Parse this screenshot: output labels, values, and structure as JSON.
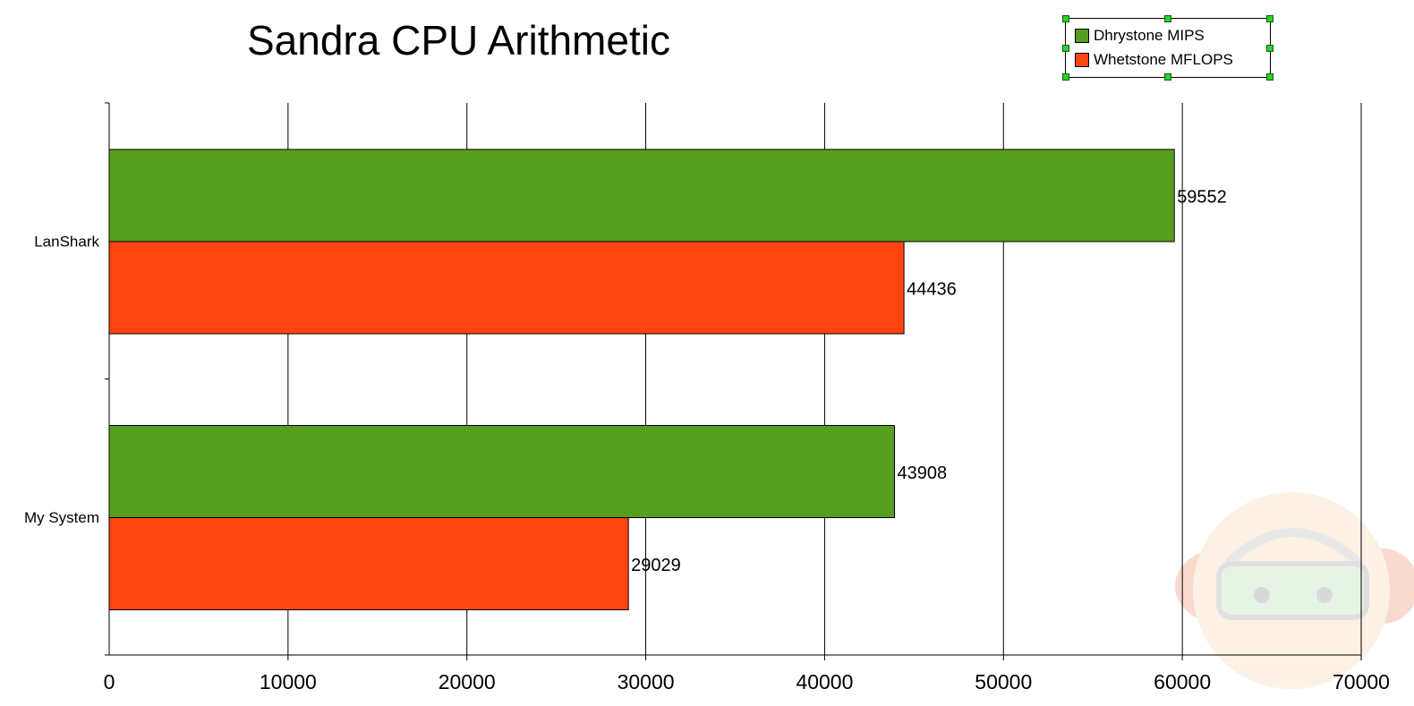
{
  "chart_data": {
    "type": "bar",
    "orientation": "horizontal",
    "title": "Sandra CPU Arithmetic",
    "categories": [
      "LanShark",
      "My System"
    ],
    "series": [
      {
        "name": "Dhrystone MIPS",
        "color": "#589e1e",
        "values": [
          59552,
          43908
        ]
      },
      {
        "name": "Whetstone MFLOPS",
        "color": "#ff4411",
        "values": [
          44436,
          29029
        ]
      }
    ],
    "xlim": [
      0,
      70000
    ],
    "xticks": [
      "0",
      "10000",
      "20000",
      "30000",
      "40000",
      "50000",
      "60000",
      "70000"
    ],
    "grid": true,
    "legend": "top-right"
  }
}
